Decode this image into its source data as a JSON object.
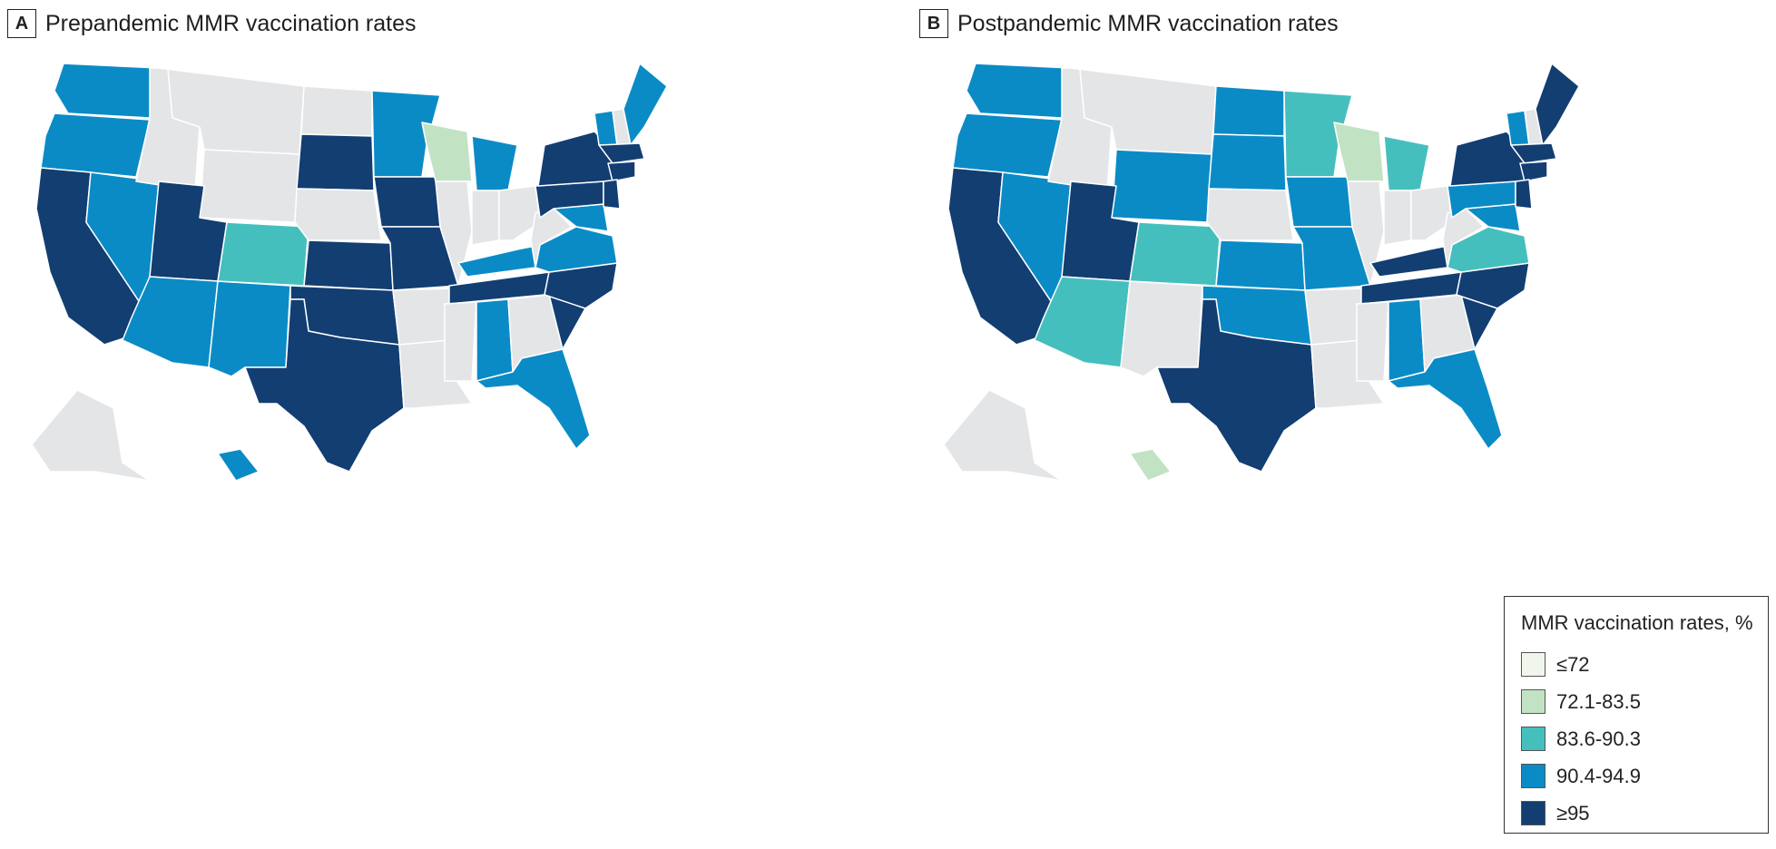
{
  "panels": [
    {
      "letter": "A",
      "title": "Prepandemic MMR vaccination rates"
    },
    {
      "letter": "B",
      "title": "Postpandemic MMR vaccination rates"
    }
  ],
  "legend": {
    "title": "MMR vaccination rates, %",
    "items": [
      {
        "label": "≤72",
        "color": "#f1f6ec"
      },
      {
        "label": "72.1-83.5",
        "color": "#c2e3c3"
      },
      {
        "label": "83.6-90.3",
        "color": "#45bfbd"
      },
      {
        "label": "90.4-94.9",
        "color": "#0b8bc6"
      },
      {
        "label": "≥95",
        "color": "#123e72"
      }
    ],
    "no_data_color": "#e4e5e7"
  },
  "map_data": {
    "regions": [
      "WA",
      "OR",
      "CA",
      "NV",
      "ID",
      "MT",
      "WY",
      "UT",
      "AZ",
      "NM",
      "CO",
      "ND",
      "SD",
      "NE",
      "KS",
      "OK",
      "TX",
      "MN",
      "IA",
      "MO",
      "AR",
      "LA",
      "WI",
      "IL",
      "MI",
      "IN",
      "OH",
      "KY",
      "TN",
      "MS",
      "AL",
      "GA",
      "FL",
      "SC",
      "NC",
      "VA",
      "WV",
      "MD",
      "PA",
      "NY",
      "VT",
      "NH",
      "ME",
      "MA",
      "CT",
      "NJ",
      "AK",
      "HI"
    ],
    "prepandemic": {
      "WA": 3,
      "OR": 3,
      "CA": 4,
      "NV": 3,
      "ID": -1,
      "MT": -1,
      "WY": -1,
      "UT": 4,
      "AZ": 3,
      "NM": 3,
      "CO": 2,
      "ND": -1,
      "SD": 4,
      "NE": -1,
      "KS": 4,
      "OK": 4,
      "TX": 4,
      "MN": 3,
      "IA": 4,
      "MO": 4,
      "AR": -1,
      "LA": -1,
      "WI": 1,
      "IL": -1,
      "MI": 3,
      "IN": -1,
      "OH": -1,
      "KY": 3,
      "TN": 4,
      "MS": -1,
      "AL": 3,
      "GA": -1,
      "FL": 3,
      "SC": 4,
      "NC": 4,
      "VA": 3,
      "WV": -1,
      "MD": 3,
      "PA": 4,
      "NY": 4,
      "VT": 3,
      "NH": -1,
      "ME": 3,
      "MA": 4,
      "CT": 4,
      "NJ": 4,
      "AK": -1,
      "HI": 3
    },
    "postpandemic": {
      "WA": 3,
      "OR": 3,
      "CA": 4,
      "NV": 3,
      "ID": -1,
      "MT": -1,
      "WY": 3,
      "UT": 4,
      "AZ": 2,
      "NM": -1,
      "CO": 2,
      "ND": 3,
      "SD": 3,
      "NE": -1,
      "KS": 3,
      "OK": 3,
      "TX": 4,
      "MN": 2,
      "IA": 3,
      "MO": 3,
      "AR": -1,
      "LA": -1,
      "WI": 1,
      "IL": -1,
      "MI": 2,
      "IN": -1,
      "OH": -1,
      "KY": 4,
      "TN": 4,
      "MS": -1,
      "AL": 3,
      "GA": -1,
      "FL": 3,
      "SC": 4,
      "NC": 4,
      "VA": 2,
      "WV": -1,
      "MD": 3,
      "PA": 3,
      "NY": 4,
      "VT": 3,
      "NH": -1,
      "ME": 4,
      "MA": 4,
      "CT": 4,
      "NJ": 4,
      "AK": -1,
      "HI": 1
    }
  }
}
